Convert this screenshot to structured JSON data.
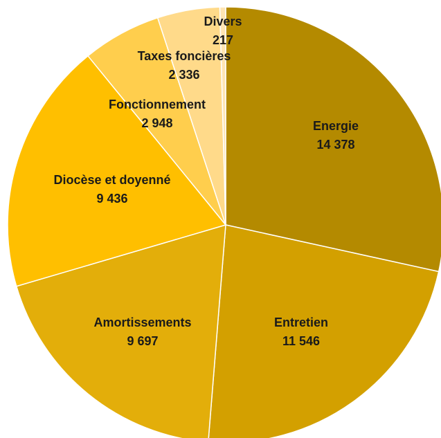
{
  "chart_data": {
    "type": "pie",
    "start": "top",
    "direction": "clockwise",
    "slices": [
      {
        "label": "Energie",
        "value_label": "14 378",
        "value": 14378,
        "color": "#B48A00"
      },
      {
        "label": "Entretien",
        "value_label": "11 546",
        "value": 11546,
        "color": "#D3A000"
      },
      {
        "label": "Amortissements",
        "value_label": "9 697",
        "value": 9697,
        "color": "#E3AE0A"
      },
      {
        "label": "Diocèse et doyenné",
        "value_label": "9 436",
        "value": 9436,
        "color": "#FFBF00"
      },
      {
        "label": "Fonctionnement",
        "value_label": "2 948",
        "value": 2948,
        "color": "#FFCE4D"
      },
      {
        "label": "Taxes foncières",
        "value_label": "2 336",
        "value": 2336,
        "color": "#FFDA8A"
      },
      {
        "label": "Divers",
        "value_label": "217",
        "value": 217,
        "color": "#FFE5B3"
      }
    ]
  }
}
